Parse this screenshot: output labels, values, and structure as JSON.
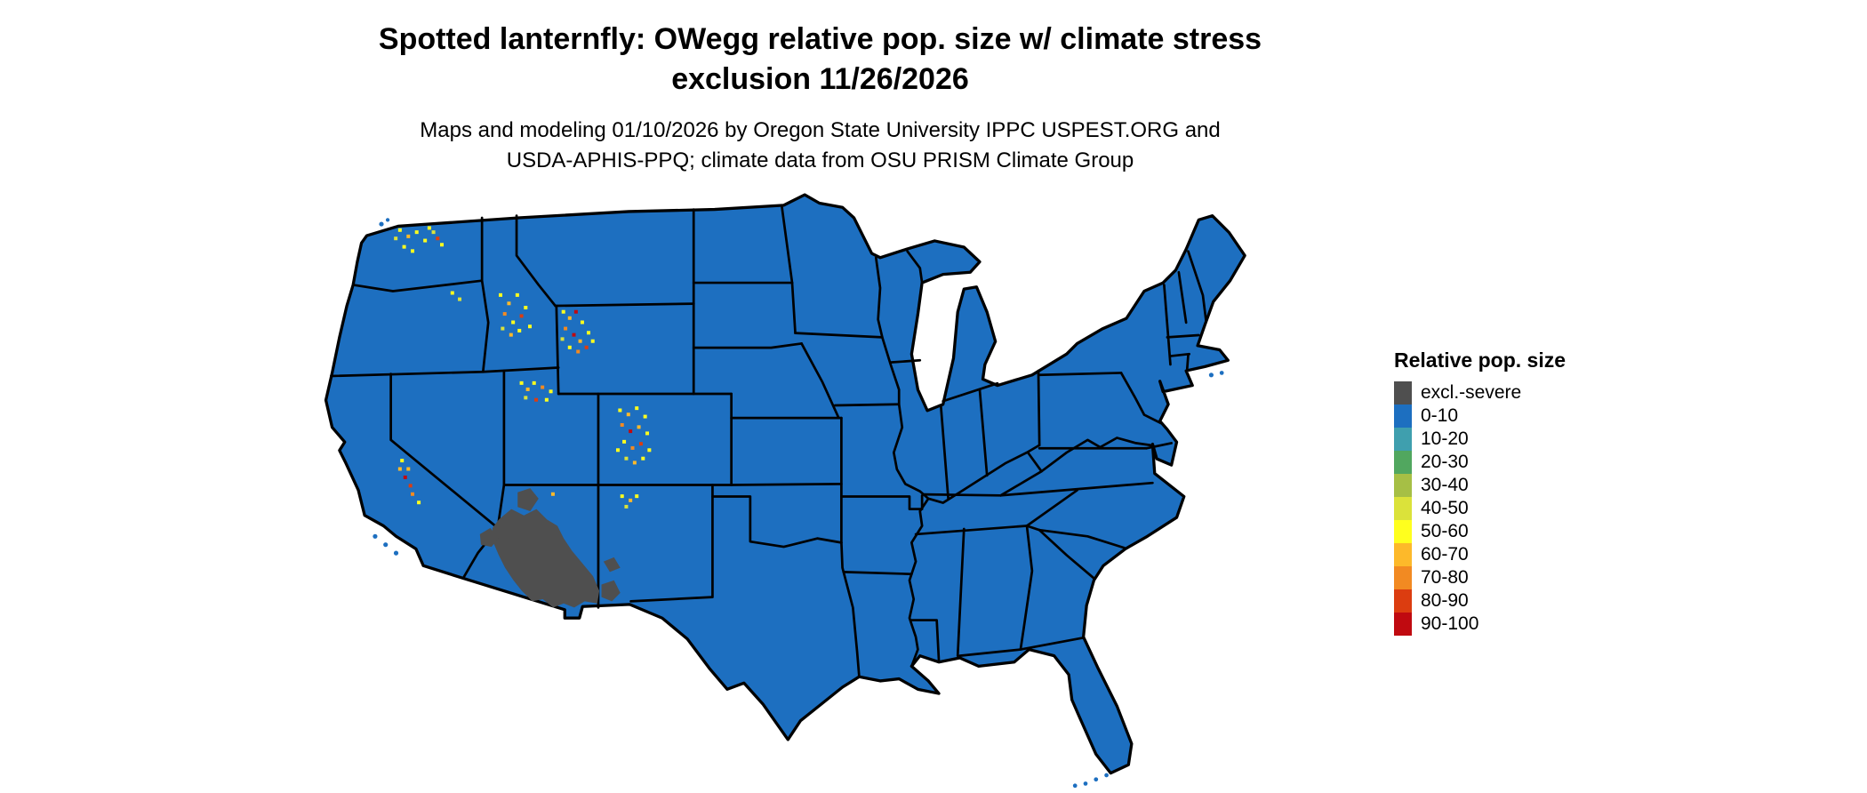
{
  "header": {
    "title_line1": "Spotted lanternfly: OWegg relative pop. size w/ climate stress",
    "title_line2": "exclusion 11/26/2026",
    "subtitle_line1": "Maps and modeling 01/10/2026 by Oregon State University IPPC USPEST.ORG and",
    "subtitle_line2": "USDA-APHIS-PPQ; climate data from OSU PRISM Climate Group"
  },
  "legend": {
    "title": "Relative pop. size",
    "items": [
      {
        "label": "excl.-severe",
        "color": "#4f4f4f"
      },
      {
        "label": "0-10",
        "color": "#1d6fc0"
      },
      {
        "label": "10-20",
        "color": "#3f9fae"
      },
      {
        "label": "20-30",
        "color": "#51a75f"
      },
      {
        "label": "30-40",
        "color": "#a6bf45"
      },
      {
        "label": "40-50",
        "color": "#dbe23a"
      },
      {
        "label": "50-60",
        "color": "#ffff1e"
      },
      {
        "label": "60-70",
        "color": "#fdb92a"
      },
      {
        "label": "70-80",
        "color": "#f28a22"
      },
      {
        "label": "80-90",
        "color": "#dc3d10"
      },
      {
        "label": "90-100",
        "color": "#c00a10"
      }
    ]
  },
  "map": {
    "region": "Contiguous United States",
    "base_fill": "#1d6fc0",
    "border_color": "#000000",
    "exclusion_color": "#4f4f4f",
    "exclusion_zones": [
      "196,316 208,306 220,312 232,306 242,316 252,322 258,334 266,346 276,358 286,370 292,384 290,396 278,394 268,400 258,396 248,400 238,392 228,394 218,384 210,374 202,362 196,350 190,336 190,324",
      "214,290 226,286 234,296 226,308 214,304",
      "294,378 306,374 312,386 304,394 294,390",
      "296,356 306,352 312,362 302,366",
      "178,330 188,324 196,334 189,342 179,340"
    ],
    "speckles": [
      [
        100,
        38,
        "#ffff1e"
      ],
      [
        108,
        44,
        "#fdb92a"
      ],
      [
        116,
        40,
        "#ffff1e"
      ],
      [
        124,
        48,
        "#ffff1e"
      ],
      [
        132,
        40,
        "#dbe23a"
      ],
      [
        140,
        52,
        "#ffff1e"
      ],
      [
        104,
        54,
        "#ffff1e"
      ],
      [
        96,
        46,
        "#dbe23a"
      ],
      [
        128,
        36,
        "#ffff1e"
      ],
      [
        136,
        46,
        "#dc3d10"
      ],
      [
        112,
        58,
        "#ffff1e"
      ],
      [
        150,
        98,
        "#ffff1e"
      ],
      [
        157,
        104,
        "#dbe23a"
      ],
      [
        196,
        100,
        "#ffff1e"
      ],
      [
        204,
        108,
        "#fdb92a"
      ],
      [
        212,
        100,
        "#ffff1e"
      ],
      [
        220,
        112,
        "#ffff1e"
      ],
      [
        200,
        118,
        "#f28a22"
      ],
      [
        208,
        126,
        "#ffff1e"
      ],
      [
        216,
        120,
        "#dc3d10"
      ],
      [
        224,
        130,
        "#ffff1e"
      ],
      [
        198,
        132,
        "#dbe23a"
      ],
      [
        206,
        138,
        "#fdb92a"
      ],
      [
        214,
        134,
        "#ffff1e"
      ],
      [
        256,
        116,
        "#ffff1e"
      ],
      [
        262,
        122,
        "#fdb92a"
      ],
      [
        268,
        116,
        "#c00a10"
      ],
      [
        274,
        126,
        "#ffff1e"
      ],
      [
        258,
        132,
        "#f28a22"
      ],
      [
        266,
        138,
        "#c00a10"
      ],
      [
        272,
        144,
        "#fdb92a"
      ],
      [
        280,
        136,
        "#ffff1e"
      ],
      [
        262,
        150,
        "#ffff1e"
      ],
      [
        270,
        154,
        "#f28a22"
      ],
      [
        278,
        150,
        "#dc3d10"
      ],
      [
        284,
        144,
        "#ffff1e"
      ],
      [
        255,
        142,
        "#dbe23a"
      ],
      [
        216,
        184,
        "#ffff1e"
      ],
      [
        222,
        190,
        "#fdb92a"
      ],
      [
        228,
        184,
        "#ffff1e"
      ],
      [
        236,
        188,
        "#f28a22"
      ],
      [
        244,
        192,
        "#ffff1e"
      ],
      [
        220,
        198,
        "#dbe23a"
      ],
      [
        230,
        200,
        "#dc3d10"
      ],
      [
        240,
        200,
        "#ffff1e"
      ],
      [
        310,
        210,
        "#ffff1e"
      ],
      [
        318,
        214,
        "#fdb92a"
      ],
      [
        326,
        208,
        "#ffff1e"
      ],
      [
        334,
        216,
        "#ffff1e"
      ],
      [
        312,
        224,
        "#f28a22"
      ],
      [
        320,
        230,
        "#c00a10"
      ],
      [
        328,
        226,
        "#fdb92a"
      ],
      [
        336,
        232,
        "#ffff1e"
      ],
      [
        314,
        240,
        "#ffff1e"
      ],
      [
        322,
        246,
        "#f28a22"
      ],
      [
        330,
        242,
        "#dc3d10"
      ],
      [
        338,
        248,
        "#ffff1e"
      ],
      [
        316,
        256,
        "#dbe23a"
      ],
      [
        324,
        260,
        "#fdb92a"
      ],
      [
        332,
        256,
        "#ffff1e"
      ],
      [
        308,
        248,
        "#ffff1e"
      ],
      [
        312,
        292,
        "#ffff1e"
      ],
      [
        320,
        296,
        "#fdb92a"
      ],
      [
        326,
        292,
        "#ffff1e"
      ],
      [
        316,
        302,
        "#dbe23a"
      ],
      [
        102,
        258,
        "#ffff1e"
      ],
      [
        108,
        266,
        "#fdb92a"
      ],
      [
        105,
        274,
        "#c00a10"
      ],
      [
        110,
        282,
        "#dc3d10"
      ],
      [
        112,
        290,
        "#f28a22"
      ],
      [
        118,
        298,
        "#ffff1e"
      ],
      [
        100,
        266,
        "#fdb92a"
      ],
      [
        246,
        290,
        "#fdb92a"
      ]
    ]
  }
}
